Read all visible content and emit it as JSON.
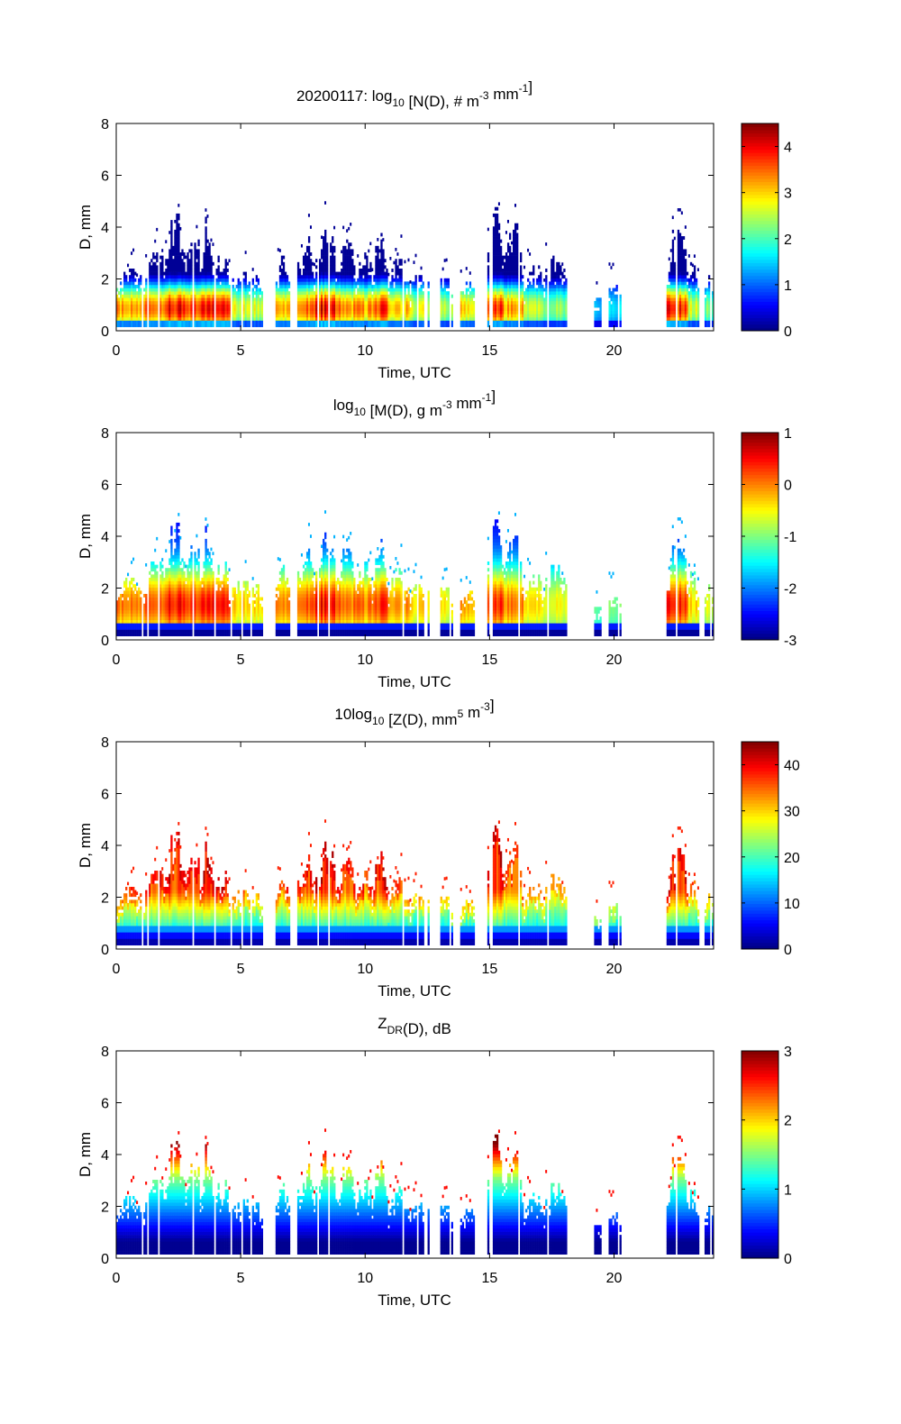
{
  "figure": {
    "date": "20200117"
  },
  "chart_data": [
    {
      "type": "heatmap",
      "title": {
        "prefix": "20200117: log",
        "sub": "10",
        "rest": " [N(D), # m",
        "sup1": "-3",
        "mid": " mm",
        "sup2": "-1",
        "end": "]"
      },
      "title_plain": "20200117: log10 [N(D), # m-3 mm-1]",
      "xlabel": "Time, UTC",
      "ylabel": "D, mm",
      "xlim": [
        0,
        24
      ],
      "ylim": [
        0,
        8
      ],
      "xticks": [
        0,
        5,
        10,
        15,
        20
      ],
      "yticks": [
        0,
        2,
        4,
        6,
        8
      ],
      "colormap": "jet",
      "clim": [
        0,
        4.5
      ],
      "cbar_ticks": [
        0,
        1,
        2,
        3,
        4
      ],
      "profile": "concentration",
      "grid": false
    },
    {
      "type": "heatmap",
      "title": {
        "prefix": "log",
        "sub": "10",
        "rest": " [M(D), g m",
        "sup1": "-3",
        "mid": " mm",
        "sup2": "-1",
        "end": "]"
      },
      "title_plain": "log10 [M(D), g m-3 mm-1]",
      "xlabel": "Time, UTC",
      "ylabel": "D, mm",
      "xlim": [
        0,
        24
      ],
      "ylim": [
        0,
        8
      ],
      "xticks": [
        0,
        5,
        10,
        15,
        20
      ],
      "yticks": [
        0,
        2,
        4,
        6,
        8
      ],
      "colormap": "jet",
      "clim": [
        -3,
        1
      ],
      "cbar_ticks": [
        -3,
        -2,
        -1,
        0,
        1
      ],
      "profile": "mass",
      "grid": false
    },
    {
      "type": "heatmap",
      "title": {
        "prefix": "10log",
        "sub": "10",
        "rest": " [Z(D),  mm",
        "sup1": "5",
        "mid": " m",
        "sup2": "-3",
        "end": "]"
      },
      "title_plain": "10log10 [Z(D), mm5 m-3]",
      "xlabel": "Time, UTC",
      "ylabel": "D, mm",
      "xlim": [
        0,
        24
      ],
      "ylim": [
        0,
        8
      ],
      "xticks": [
        0,
        5,
        10,
        15,
        20
      ],
      "yticks": [
        0,
        2,
        4,
        6,
        8
      ],
      "colormap": "jet",
      "clim": [
        0,
        45
      ],
      "cbar_ticks": [
        0,
        10,
        20,
        30,
        40
      ],
      "profile": "reflectivity",
      "grid": false
    },
    {
      "type": "heatmap",
      "title": {
        "prefix": "Z",
        "sub": "DR",
        "rest": "(D), dB",
        "sup1": "",
        "mid": "",
        "sup2": "",
        "end": ""
      },
      "title_plain": "ZDR(D), dB",
      "xlabel": "Time, UTC",
      "ylabel": "D, mm",
      "xlim": [
        0,
        24
      ],
      "ylim": [
        0,
        8
      ],
      "xticks": [
        0,
        5,
        10,
        15,
        20
      ],
      "yticks": [
        0,
        2,
        4,
        6,
        8
      ],
      "colormap": "jet",
      "clim": [
        0,
        3
      ],
      "cbar_ticks": [
        0,
        1,
        2,
        3
      ],
      "profile": "zdr",
      "grid": false
    }
  ],
  "precip_events": [
    {
      "start": 0.0,
      "end": 1.2,
      "dmax": 2.3,
      "peak_nd": 3.6
    },
    {
      "start": 1.2,
      "end": 2.0,
      "dmax": 3.0,
      "peak_nd": 3.8
    },
    {
      "start": 2.0,
      "end": 2.8,
      "dmax": 4.5,
      "peak_nd": 4.3
    },
    {
      "start": 2.8,
      "end": 3.4,
      "dmax": 3.8,
      "peak_nd": 4.0
    },
    {
      "start": 3.4,
      "end": 4.0,
      "dmax": 4.3,
      "peak_nd": 4.3
    },
    {
      "start": 4.0,
      "end": 4.6,
      "dmax": 3.0,
      "peak_nd": 4.2
    },
    {
      "start": 4.6,
      "end": 5.9,
      "dmax": 2.2,
      "peak_nd": 3.0
    },
    {
      "start": 6.3,
      "end": 7.0,
      "dmax": 2.9,
      "peak_nd": 3.4
    },
    {
      "start": 7.3,
      "end": 8.0,
      "dmax": 3.6,
      "peak_nd": 4.0
    },
    {
      "start": 8.0,
      "end": 8.8,
      "dmax": 4.6,
      "peak_nd": 4.4
    },
    {
      "start": 8.8,
      "end": 9.6,
      "dmax": 3.5,
      "peak_nd": 3.7
    },
    {
      "start": 9.6,
      "end": 10.3,
      "dmax": 3.0,
      "peak_nd": 3.6
    },
    {
      "start": 10.3,
      "end": 10.9,
      "dmax": 3.8,
      "peak_nd": 4.1
    },
    {
      "start": 10.9,
      "end": 11.8,
      "dmax": 2.7,
      "peak_nd": 3.5
    },
    {
      "start": 11.8,
      "end": 12.6,
      "dmax": 2.1,
      "peak_nd": 3.0
    },
    {
      "start": 13.0,
      "end": 13.5,
      "dmax": 2.0,
      "peak_nd": 2.7
    },
    {
      "start": 13.8,
      "end": 14.4,
      "dmax": 1.9,
      "peak_nd": 3.3
    },
    {
      "start": 14.9,
      "end": 15.6,
      "dmax": 4.7,
      "peak_nd": 4.3
    },
    {
      "start": 15.6,
      "end": 16.4,
      "dmax": 4.1,
      "peak_nd": 3.5
    },
    {
      "start": 16.4,
      "end": 17.2,
      "dmax": 2.5,
      "peak_nd": 2.8
    },
    {
      "start": 17.2,
      "end": 18.1,
      "dmax": 2.8,
      "peak_nd": 2.6
    },
    {
      "start": 19.2,
      "end": 19.5,
      "dmax": 1.2,
      "peak_nd": 1.6
    },
    {
      "start": 19.8,
      "end": 20.3,
      "dmax": 1.7,
      "peak_nd": 1.8
    },
    {
      "start": 22.1,
      "end": 23.0,
      "dmax": 3.9,
      "peak_nd": 4.2
    },
    {
      "start": 23.0,
      "end": 23.4,
      "dmax": 2.6,
      "peak_nd": 3.0
    },
    {
      "start": 23.6,
      "end": 24.0,
      "dmax": 2.1,
      "peak_nd": 2.5
    }
  ]
}
